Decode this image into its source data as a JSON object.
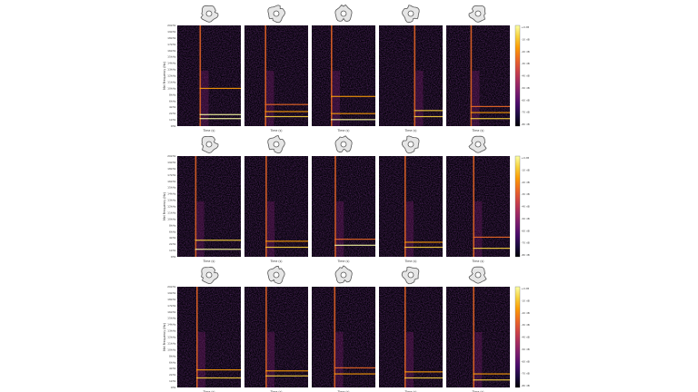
{
  "chart_data": {
    "type": "heatmap",
    "layout": {
      "rows": 3,
      "cols": 5
    },
    "colormap": [
      "#000004",
      "#1b0c41",
      "#4a0c6b",
      "#781c6d",
      "#a52c60",
      "#cf4446",
      "#ed6925",
      "#fb9b06",
      "#f7d13d",
      "#fcffa4"
    ],
    "xlabel": "Time (s)",
    "ylabel": "Mel Frequency (Hz)",
    "ytick_labels": [
      "0Hz",
      "1kHz",
      "2kHz",
      "4kHz",
      "6kHz",
      "8kHz",
      "10kHz",
      "11kHz",
      "12kHz",
      "13kHz",
      "14kHz",
      "15kHz",
      "16kHz",
      "17kHz",
      "18kHz",
      "19kHz",
      "20kHz"
    ],
    "colorbar": {
      "range_db": [
        -80,
        0
      ],
      "tick_labels": [
        "+0 dB",
        "-10 dB",
        "-20 dB",
        "-30 dB",
        "-40 dB",
        "-50 dB",
        "-60 dB",
        "-70 dB",
        "-80 dB"
      ]
    },
    "panels": [
      {
        "row": 0,
        "col": 0,
        "onset": 0.35,
        "lines": [
          [
            0.92,
            1.0
          ],
          [
            0.88,
            0.9
          ],
          [
            0.62,
            0.5
          ]
        ]
      },
      {
        "row": 0,
        "col": 1,
        "onset": 0.32,
        "lines": [
          [
            0.9,
            0.8
          ],
          [
            0.85,
            0.6
          ],
          [
            0.78,
            0.4
          ]
        ]
      },
      {
        "row": 0,
        "col": 2,
        "onset": 0.3,
        "lines": [
          [
            0.93,
            0.9
          ],
          [
            0.87,
            0.6
          ],
          [
            0.7,
            0.5
          ]
        ]
      },
      {
        "row": 0,
        "col": 3,
        "onset": 0.55,
        "lines": [
          [
            0.9,
            0.8
          ],
          [
            0.84,
            0.7
          ]
        ]
      },
      {
        "row": 0,
        "col": 4,
        "onset": 0.38,
        "lines": [
          [
            0.92,
            0.8
          ],
          [
            0.86,
            0.6
          ],
          [
            0.8,
            0.4
          ]
        ]
      },
      {
        "row": 1,
        "col": 0,
        "onset": 0.28,
        "lines": [
          [
            0.92,
            0.9
          ],
          [
            0.83,
            0.7
          ]
        ]
      },
      {
        "row": 1,
        "col": 1,
        "onset": 0.33,
        "lines": [
          [
            0.9,
            0.8
          ],
          [
            0.84,
            0.6
          ]
        ]
      },
      {
        "row": 1,
        "col": 2,
        "onset": 0.36,
        "lines": [
          [
            0.88,
            0.9
          ],
          [
            0.82,
            0.4
          ]
        ]
      },
      {
        "row": 1,
        "col": 3,
        "onset": 0.4,
        "lines": [
          [
            0.9,
            0.8
          ],
          [
            0.85,
            0.6
          ]
        ]
      },
      {
        "row": 1,
        "col": 4,
        "onset": 0.42,
        "lines": [
          [
            0.91,
            0.8
          ],
          [
            0.8,
            0.4
          ]
        ]
      },
      {
        "row": 2,
        "col": 0,
        "onset": 0.3,
        "lines": [
          [
            0.9,
            0.7
          ],
          [
            0.82,
            0.6
          ]
        ]
      },
      {
        "row": 2,
        "col": 1,
        "onset": 0.33,
        "lines": [
          [
            0.88,
            0.8
          ],
          [
            0.83,
            0.6
          ]
        ]
      },
      {
        "row": 2,
        "col": 2,
        "onset": 0.35,
        "lines": [
          [
            0.86,
            0.5
          ],
          [
            0.8,
            0.3
          ]
        ]
      },
      {
        "row": 2,
        "col": 3,
        "onset": 0.4,
        "lines": [
          [
            0.9,
            0.7
          ],
          [
            0.84,
            0.5
          ]
        ]
      },
      {
        "row": 2,
        "col": 4,
        "onset": 0.42,
        "lines": [
          [
            0.92,
            0.7
          ],
          [
            0.86,
            0.6
          ]
        ]
      }
    ]
  }
}
